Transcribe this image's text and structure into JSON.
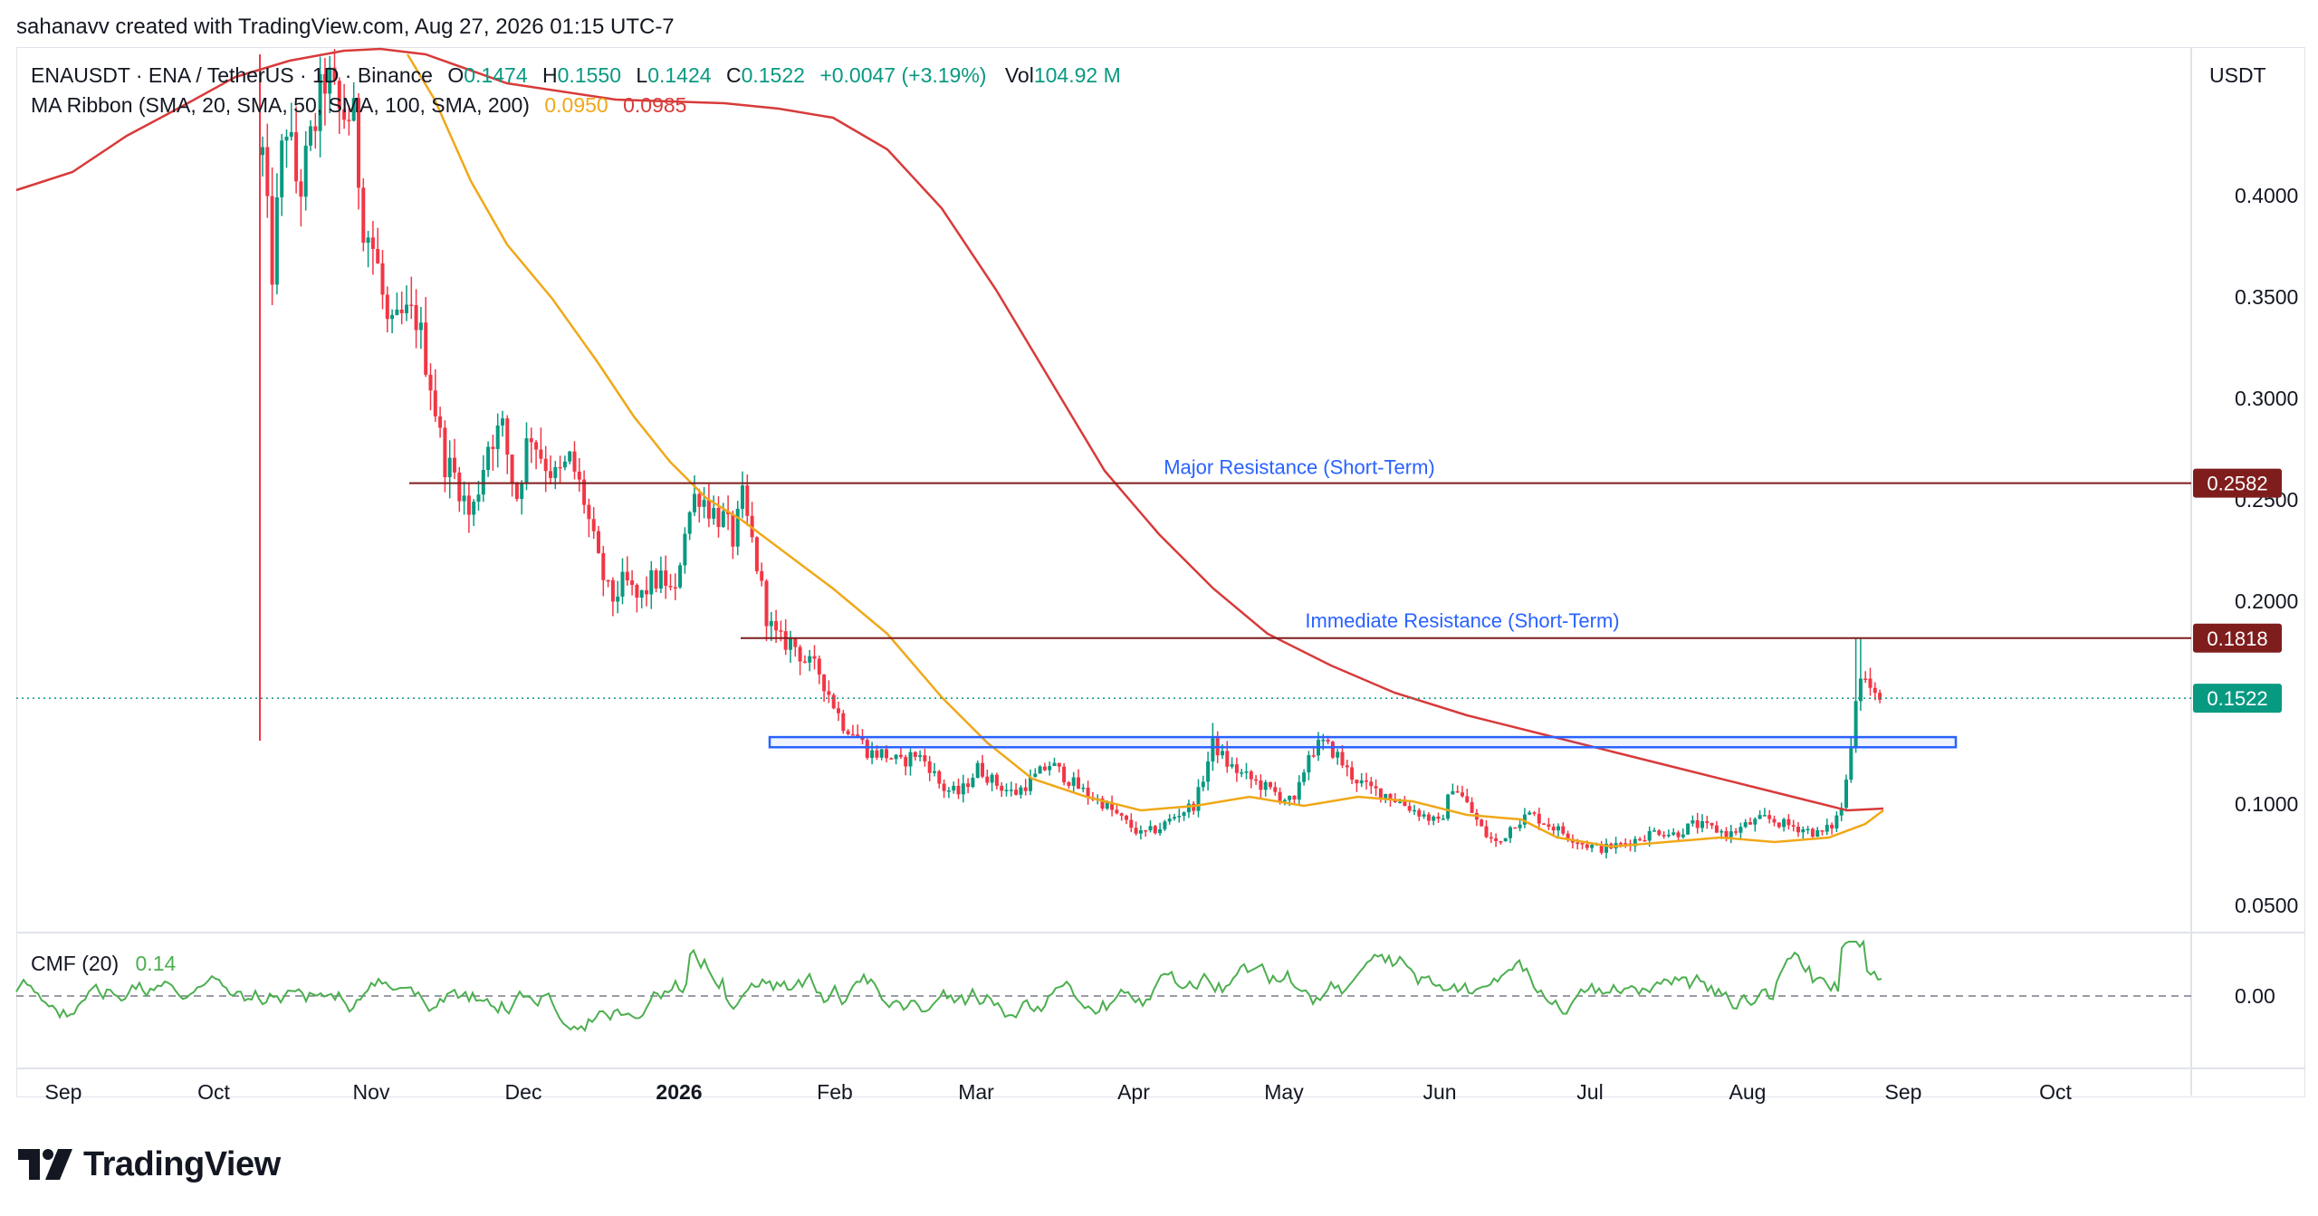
{
  "header": {
    "text": "sahanavv created with TradingView.com, Aug 27, 2026 01:15 UTC-7"
  },
  "legend": {
    "symbol": "ENAUSDT · ENA / TetherUS · 1D · Binance",
    "o_label": "O",
    "o_value": "0.1474",
    "h_label": "H",
    "h_value": "0.1550",
    "l_label": "L",
    "l_value": "0.1424",
    "c_label": "C",
    "c_value": "0.1522",
    "change": "+0.0047 (+3.19%)",
    "vol_label": "Vol",
    "vol_value": "104.92 M",
    "ma_label": "MA Ribbon (SMA, 20, SMA, 50, SMA, 100, SMA, 200)",
    "ma_val_1": "0.0950",
    "ma_val_2": "0.0985"
  },
  "cmf": {
    "label": "CMF (20)",
    "value": "0.14",
    "zero_label": "0.00"
  },
  "currency": "USDT",
  "price_axis": {
    "ticks": [
      {
        "value": 0.4,
        "label": "0.4000"
      },
      {
        "value": 0.35,
        "label": "0.3500"
      },
      {
        "value": 0.3,
        "label": "0.3000"
      },
      {
        "value": 0.25,
        "label": "0.2500"
      },
      {
        "value": 0.2,
        "label": "0.2000"
      },
      {
        "value": 0.1,
        "label": "0.1000"
      },
      {
        "value": 0.05,
        "label": "0.0500"
      }
    ],
    "badges": [
      {
        "value": 0.2582,
        "label": "0.2582",
        "color": "#7f1d1d"
      },
      {
        "value": 0.1818,
        "label": "0.1818",
        "color": "#7f1d1d"
      },
      {
        "value": 0.1522,
        "label": "0.1522",
        "color": "#089981"
      }
    ]
  },
  "time_axis": [
    "Sep",
    "Oct",
    "Nov",
    "Dec",
    "2026",
    "Feb",
    "Mar",
    "Apr",
    "May",
    "Jun",
    "Jul",
    "Aug",
    "Sep",
    "Oct"
  ],
  "annotations": {
    "major": {
      "label": "Major Resistance (Short-Term)",
      "value": 0.2582
    },
    "immediate": {
      "label": "Immediate Resistance (Short-Term)",
      "value": 0.1818
    },
    "support_zone": {
      "low": 0.128,
      "high": 0.133
    }
  },
  "colors": {
    "up": "#089981",
    "down": "#f23645",
    "ma50": "#f0a818",
    "ma200": "#d83a3a",
    "resistance": "#7f1d1d",
    "label_blue": "#2962ff",
    "cmf_line": "#4caf50"
  },
  "footer": {
    "brand": "TradingView"
  }
}
